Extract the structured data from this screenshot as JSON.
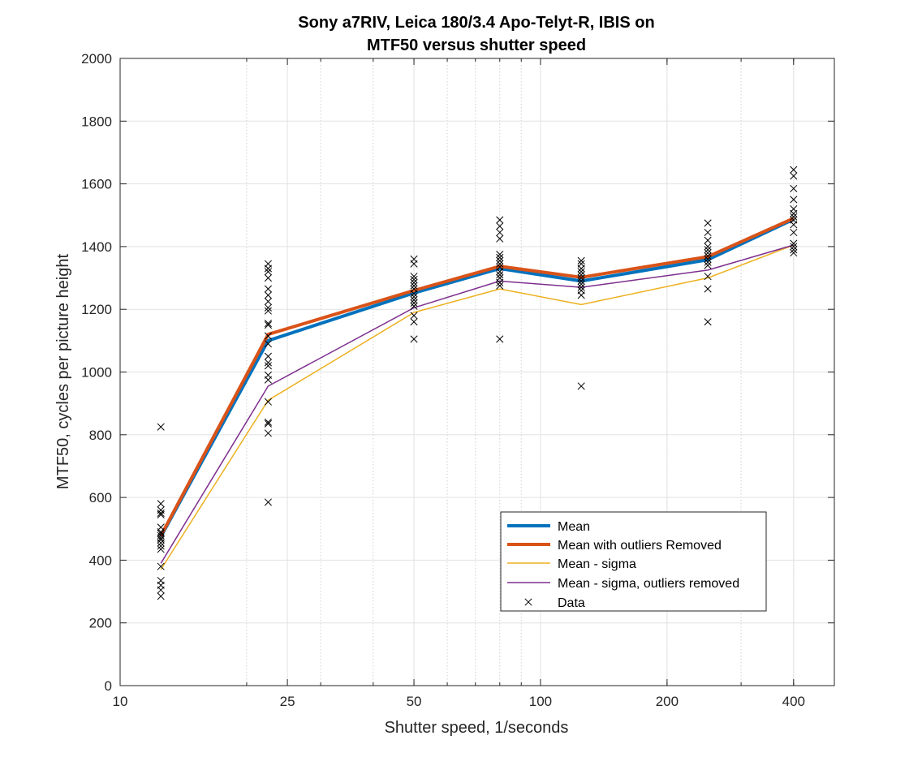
{
  "chart_data": {
    "type": "line",
    "title": [
      "Sony a7RIV, Leica 180/3.4 Apo-Telyt-R, IBIS on",
      "MTF50 versus shutter speed"
    ],
    "xlabel": "Shutter speed, 1/seconds",
    "ylabel": "MTF50, cycles per picture height",
    "x_scale": "log",
    "xlim": [
      10,
      500
    ],
    "ylim": [
      0,
      2000
    ],
    "x_ticks": [
      10,
      25,
      50,
      100,
      200,
      400
    ],
    "x_tick_labels": [
      "10",
      "25",
      "50",
      "100",
      "200",
      "400"
    ],
    "y_ticks": [
      0,
      200,
      400,
      600,
      800,
      1000,
      1200,
      1400,
      1600,
      1800,
      2000
    ],
    "y_tick_labels": [
      "0",
      "200",
      "400",
      "600",
      "800",
      "1000",
      "1200",
      "1400",
      "1600",
      "1800",
      "2000"
    ],
    "grid": true,
    "legend_position": "bottom-right",
    "x": [
      12.5,
      22.5,
      50,
      80,
      125,
      250,
      400
    ],
    "series": [
      {
        "name": "Mean",
        "color": "#0072BD",
        "y": [
          475,
          1100,
          1252,
          1330,
          1290,
          1358,
          1487
        ]
      },
      {
        "name": "Mean with outliers Removed",
        "color": "#D95319",
        "y": [
          478,
          1120,
          1260,
          1337,
          1302,
          1368,
          1490
        ]
      },
      {
        "name": "Mean - sigma",
        "color": "#EDB120",
        "y": [
          370,
          910,
          1190,
          1265,
          1215,
          1300,
          1405
        ]
      },
      {
        "name": "Mean - sigma, outliers removed",
        "color": "#7E2F8E",
        "y": [
          390,
          955,
          1205,
          1290,
          1270,
          1325,
          1405
        ]
      }
    ],
    "scatter": {
      "name": "Data",
      "color": "#000000",
      "points": [
        [
          12.5,
          825
        ],
        [
          12.5,
          580
        ],
        [
          12.5,
          560
        ],
        [
          12.5,
          550
        ],
        [
          12.5,
          545
        ],
        [
          12.5,
          505
        ],
        [
          12.5,
          490
        ],
        [
          12.5,
          485
        ],
        [
          12.5,
          478
        ],
        [
          12.5,
          470
        ],
        [
          12.5,
          465
        ],
        [
          12.5,
          455
        ],
        [
          12.5,
          445
        ],
        [
          12.5,
          435
        ],
        [
          12.5,
          380
        ],
        [
          12.5,
          335
        ],
        [
          12.5,
          320
        ],
        [
          12.5,
          305
        ],
        [
          12.5,
          285
        ],
        [
          22.5,
          1345
        ],
        [
          22.5,
          1330
        ],
        [
          22.5,
          1320
        ],
        [
          22.5,
          1300
        ],
        [
          22.5,
          1265
        ],
        [
          22.5,
          1245
        ],
        [
          22.5,
          1225
        ],
        [
          22.5,
          1205
        ],
        [
          22.5,
          1195
        ],
        [
          22.5,
          1155
        ],
        [
          22.5,
          1150
        ],
        [
          22.5,
          1115
        ],
        [
          22.5,
          1090
        ],
        [
          22.5,
          1050
        ],
        [
          22.5,
          1030
        ],
        [
          22.5,
          1020
        ],
        [
          22.5,
          990
        ],
        [
          22.5,
          975
        ],
        [
          22.5,
          905
        ],
        [
          22.5,
          840
        ],
        [
          22.5,
          835
        ],
        [
          22.5,
          805
        ],
        [
          22.5,
          585
        ],
        [
          50,
          1360
        ],
        [
          50,
          1345
        ],
        [
          50,
          1305
        ],
        [
          50,
          1295
        ],
        [
          50,
          1285
        ],
        [
          50,
          1275
        ],
        [
          50,
          1265
        ],
        [
          50,
          1250
        ],
        [
          50,
          1240
        ],
        [
          50,
          1230
        ],
        [
          50,
          1220
        ],
        [
          50,
          1210
        ],
        [
          50,
          1180
        ],
        [
          50,
          1160
        ],
        [
          50,
          1105
        ],
        [
          80,
          1485
        ],
        [
          80,
          1465
        ],
        [
          80,
          1445
        ],
        [
          80,
          1425
        ],
        [
          80,
          1375
        ],
        [
          80,
          1365
        ],
        [
          80,
          1355
        ],
        [
          80,
          1345
        ],
        [
          80,
          1335
        ],
        [
          80,
          1320
        ],
        [
          80,
          1310
        ],
        [
          80,
          1300
        ],
        [
          80,
          1285
        ],
        [
          80,
          1275
        ],
        [
          80,
          1105
        ],
        [
          125,
          1355
        ],
        [
          125,
          1345
        ],
        [
          125,
          1330
        ],
        [
          125,
          1320
        ],
        [
          125,
          1310
        ],
        [
          125,
          1300
        ],
        [
          125,
          1290
        ],
        [
          125,
          1280
        ],
        [
          125,
          1270
        ],
        [
          125,
          1260
        ],
        [
          125,
          1245
        ],
        [
          125,
          955
        ],
        [
          250,
          1475
        ],
        [
          250,
          1445
        ],
        [
          250,
          1420
        ],
        [
          250,
          1400
        ],
        [
          250,
          1390
        ],
        [
          250,
          1380
        ],
        [
          250,
          1370
        ],
        [
          250,
          1360
        ],
        [
          250,
          1350
        ],
        [
          250,
          1340
        ],
        [
          250,
          1305
        ],
        [
          250,
          1265
        ],
        [
          250,
          1160
        ],
        [
          400,
          1645
        ],
        [
          400,
          1625
        ],
        [
          400,
          1585
        ],
        [
          400,
          1550
        ],
        [
          400,
          1520
        ],
        [
          400,
          1505
        ],
        [
          400,
          1495
        ],
        [
          400,
          1485
        ],
        [
          400,
          1470
        ],
        [
          400,
          1445
        ],
        [
          400,
          1410
        ],
        [
          400,
          1400
        ],
        [
          400,
          1390
        ],
        [
          400,
          1380
        ]
      ]
    }
  }
}
